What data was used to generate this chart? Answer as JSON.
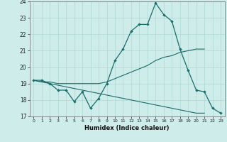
{
  "xlabel": "Humidex (Indice chaleur)",
  "background_color": "#cdecea",
  "grid_color": "#aed8d4",
  "line_color": "#1a6b6b",
  "x_values": [
    0,
    1,
    2,
    3,
    4,
    5,
    6,
    7,
    8,
    9,
    10,
    11,
    12,
    13,
    14,
    15,
    16,
    17,
    18,
    19,
    20,
    21,
    22,
    23
  ],
  "line1_y": [
    19.2,
    19.2,
    19.0,
    18.6,
    18.6,
    17.9,
    18.5,
    17.5,
    18.1,
    19.0,
    20.4,
    21.1,
    22.2,
    22.6,
    22.6,
    23.9,
    23.2,
    22.8,
    21.1,
    19.8,
    18.6,
    18.5,
    17.5,
    17.2
  ],
  "line2_y": [
    19.2,
    19.1,
    19.1,
    19.0,
    19.0,
    19.0,
    19.0,
    19.0,
    19.0,
    19.1,
    19.3,
    19.5,
    19.7,
    19.9,
    20.1,
    20.4,
    20.6,
    20.7,
    20.9,
    21.0,
    21.1,
    21.1,
    null,
    null
  ],
  "line3_y": [
    19.2,
    19.1,
    19.0,
    18.9,
    18.8,
    18.7,
    18.6,
    18.5,
    18.4,
    18.3,
    18.2,
    18.1,
    18.0,
    17.9,
    17.8,
    17.7,
    17.6,
    17.5,
    17.4,
    17.3,
    17.2,
    17.2,
    null,
    null
  ],
  "ylim": [
    17,
    24
  ],
  "xlim": [
    -0.5,
    23.5
  ],
  "yticks": [
    17,
    18,
    19,
    20,
    21,
    22,
    23,
    24
  ],
  "xticks": [
    0,
    1,
    2,
    3,
    4,
    5,
    6,
    7,
    8,
    9,
    10,
    11,
    12,
    13,
    14,
    15,
    16,
    17,
    18,
    19,
    20,
    21,
    22,
    23
  ]
}
